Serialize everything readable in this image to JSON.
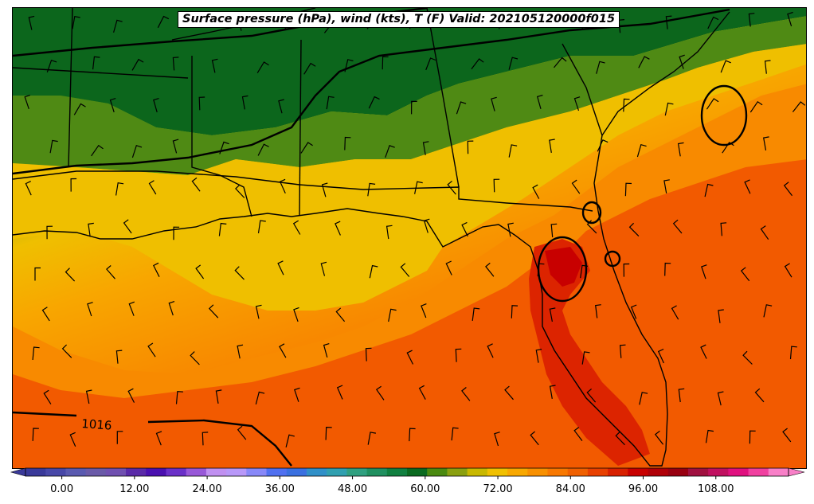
{
  "title": "Surface pressure (hPa), wind (kts), T (F) Valid: 202105120000f015",
  "isobar_labels": [
    "1016"
  ],
  "colorbar": {
    "vmin": -6,
    "vmax": 120,
    "step": 3,
    "tick_values": [
      0,
      12,
      24,
      36,
      48,
      60,
      72,
      84,
      96,
      108
    ],
    "tick_labels": [
      "0.00",
      "12.00",
      "24.00",
      "36.00",
      "48.00",
      "60.00",
      "72.00",
      "84.00",
      "96.00",
      "108.00"
    ],
    "colors": [
      "#3a3a9a",
      "#4848a8",
      "#5a5ab0",
      "#6a5aa8",
      "#7050b0",
      "#5a2aa8",
      "#4a10b0",
      "#6a30c8",
      "#9858d8",
      "#c090f0",
      "#b898f8",
      "#8888f8",
      "#5070f0",
      "#3a70e0",
      "#3090c8",
      "#30a0b0",
      "#30a080",
      "#209060",
      "#108040",
      "#0a6a20",
      "#4a8a10",
      "#8aa010",
      "#c8b800",
      "#f0c000",
      "#f8a800",
      "#f89000",
      "#f87800",
      "#f06000",
      "#e84000",
      "#d82000",
      "#c80000",
      "#b00008",
      "#980010",
      "#a01040",
      "#c01060",
      "#e01080",
      "#f040a0",
      "#f880c8"
    ]
  },
  "map_legend": {
    "field": "temperature",
    "unit": "F"
  }
}
